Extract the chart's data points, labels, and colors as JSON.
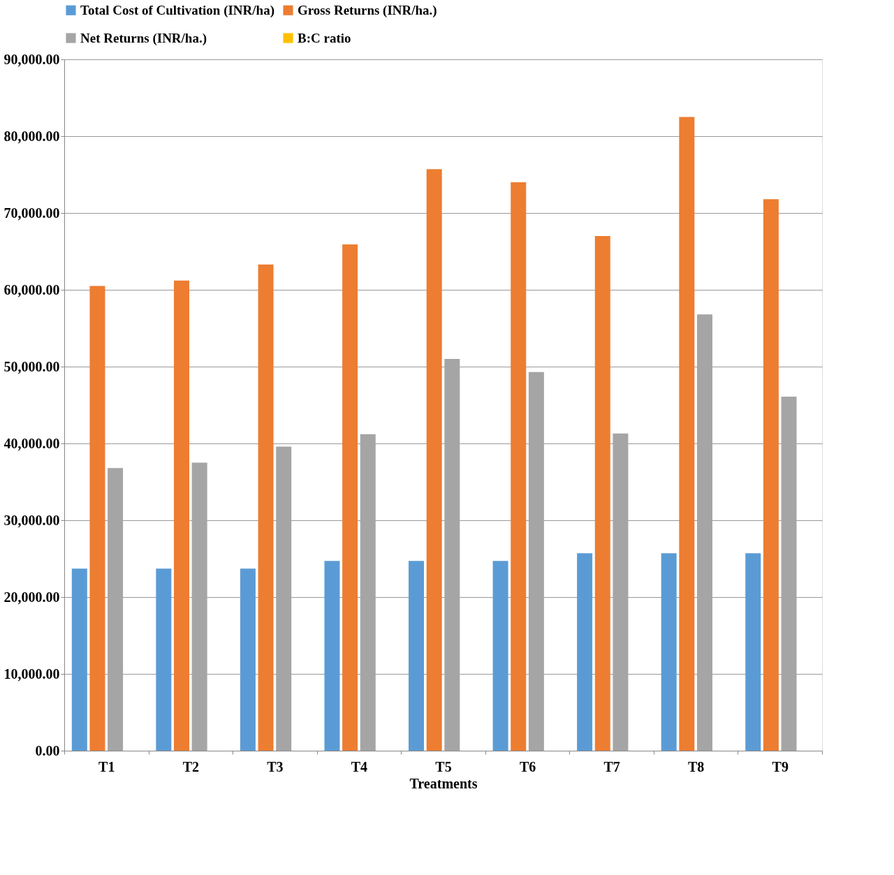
{
  "chart_data": {
    "type": "bar",
    "xlabel": "Treatments",
    "categories": [
      "T1",
      "T2",
      "T3",
      "T4",
      "T5",
      "T6",
      "T7",
      "T8",
      "T9"
    ],
    "series": [
      {
        "name": "Total Cost of Cultivation (INR/ha)",
        "color": "#5b9bd5",
        "values": [
          23700,
          23700,
          23700,
          24700,
          24700,
          24700,
          25700,
          25700,
          25700
        ]
      },
      {
        "name": "Gross Returns (INR/ha.)",
        "color": "#ed7d31",
        "values": [
          60500,
          61200,
          63300,
          65900,
          75700,
          74000,
          67000,
          82500,
          71800
        ]
      },
      {
        "name": "Net Returns (INR/ha.)",
        "color": "#a5a5a5",
        "values": [
          36800,
          37500,
          39600,
          41200,
          51000,
          49300,
          41300,
          56800,
          46100
        ]
      },
      {
        "name": "B:C ratio",
        "color": "#ffc000",
        "values": [
          null,
          null,
          null,
          null,
          null,
          null,
          null,
          null,
          null
        ]
      }
    ],
    "ylim": [
      0,
      90000
    ],
    "yticks": [
      {
        "value": 0,
        "label": "0.00"
      },
      {
        "value": 10000,
        "label": "10,000.00"
      },
      {
        "value": 20000,
        "label": "20,000.00"
      },
      {
        "value": 30000,
        "label": "30,000.00"
      },
      {
        "value": 40000,
        "label": "40,000.00"
      },
      {
        "value": 50000,
        "label": "50,000.00"
      },
      {
        "value": 60000,
        "label": "60,000.00"
      },
      {
        "value": 70000,
        "label": "70,000.00"
      },
      {
        "value": 80000,
        "label": "80,000.00"
      },
      {
        "value": 90000,
        "label": "90,000.00"
      }
    ],
    "grid": "y",
    "legend": "top"
  }
}
